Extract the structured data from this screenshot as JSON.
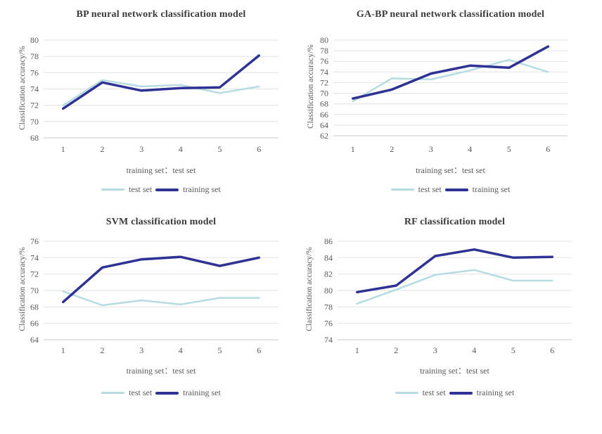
{
  "style": {
    "background": "#ffffff",
    "test_set_color": "#b7dbe3",
    "training_set_color": "#2e3295",
    "gridline_color": "#e2e2e2",
    "axis_line_color": "#c9c9c9",
    "tick_text_color": "#595959",
    "title_text_color": "#3b3b3b"
  },
  "chart_data": [
    {
      "type": "line",
      "title": "BP neural network classification model",
      "ylabel": "Classification accuracy/%",
      "xlabel": "training set：test set",
      "categories": [
        "1",
        "2",
        "3",
        "4",
        "5",
        "6"
      ],
      "ylim": [
        68,
        80
      ],
      "yticks": [
        68,
        70,
        72,
        74,
        76,
        78,
        80
      ],
      "grid": true,
      "legend_position": "bottom",
      "series": [
        {
          "name": "test set",
          "color": "#b7dbe3",
          "values": [
            72.0,
            75.1,
            74.3,
            74.5,
            73.5,
            74.3
          ]
        },
        {
          "name": "training set",
          "color": "#2e3295",
          "values": [
            71.6,
            74.8,
            73.8,
            74.1,
            74.2,
            78.1
          ]
        }
      ]
    },
    {
      "type": "line",
      "title": "GA-BP neural network classification model",
      "ylabel": "Classification accuracy/%",
      "xlabel": "training set：test set",
      "categories": [
        "1",
        "2",
        "3",
        "4",
        "5",
        "6"
      ],
      "ylim": [
        62,
        80
      ],
      "yticks": [
        62,
        64,
        66,
        68,
        70,
        72,
        74,
        76,
        78,
        80
      ],
      "grid": true,
      "legend_position": "bottom",
      "series": [
        {
          "name": "test set",
          "color": "#b7dbe3",
          "values": [
            68.5,
            72.8,
            72.6,
            74.3,
            76.3,
            74.0
          ]
        },
        {
          "name": "training set",
          "color": "#2e3295",
          "values": [
            69.0,
            70.7,
            73.7,
            75.2,
            74.8,
            78.8
          ]
        }
      ]
    },
    {
      "type": "line",
      "title": "SVM classification model",
      "ylabel": "Classification accuracy/%",
      "xlabel": "training set：test set",
      "categories": [
        "1",
        "2",
        "3",
        "4",
        "5",
        "6"
      ],
      "ylim": [
        64,
        76
      ],
      "yticks": [
        64,
        66,
        68,
        70,
        72,
        74,
        76
      ],
      "grid": true,
      "legend_position": "bottom",
      "series": [
        {
          "name": "test set",
          "color": "#b7dbe3",
          "values": [
            69.9,
            68.2,
            68.8,
            68.3,
            69.1,
            69.1
          ]
        },
        {
          "name": "training set",
          "color": "#2e3295",
          "values": [
            68.6,
            72.8,
            73.8,
            74.1,
            73.0,
            74.0
          ]
        }
      ]
    },
    {
      "type": "line",
      "title": "RF classification model",
      "ylabel": "Classification accuracy/%",
      "xlabel": "training set：test set",
      "categories": [
        "1",
        "2",
        "3",
        "4",
        "5",
        "6"
      ],
      "ylim": [
        74,
        86
      ],
      "yticks": [
        74,
        76,
        78,
        80,
        82,
        84,
        86
      ],
      "grid": true,
      "legend_position": "bottom",
      "series": [
        {
          "name": "test set",
          "color": "#b7dbe3",
          "values": [
            78.4,
            80.1,
            81.9,
            82.5,
            81.2,
            81.2
          ]
        },
        {
          "name": "training set",
          "color": "#2e3295",
          "values": [
            79.8,
            80.6,
            84.2,
            85.0,
            84.0,
            84.1
          ]
        }
      ]
    }
  ]
}
